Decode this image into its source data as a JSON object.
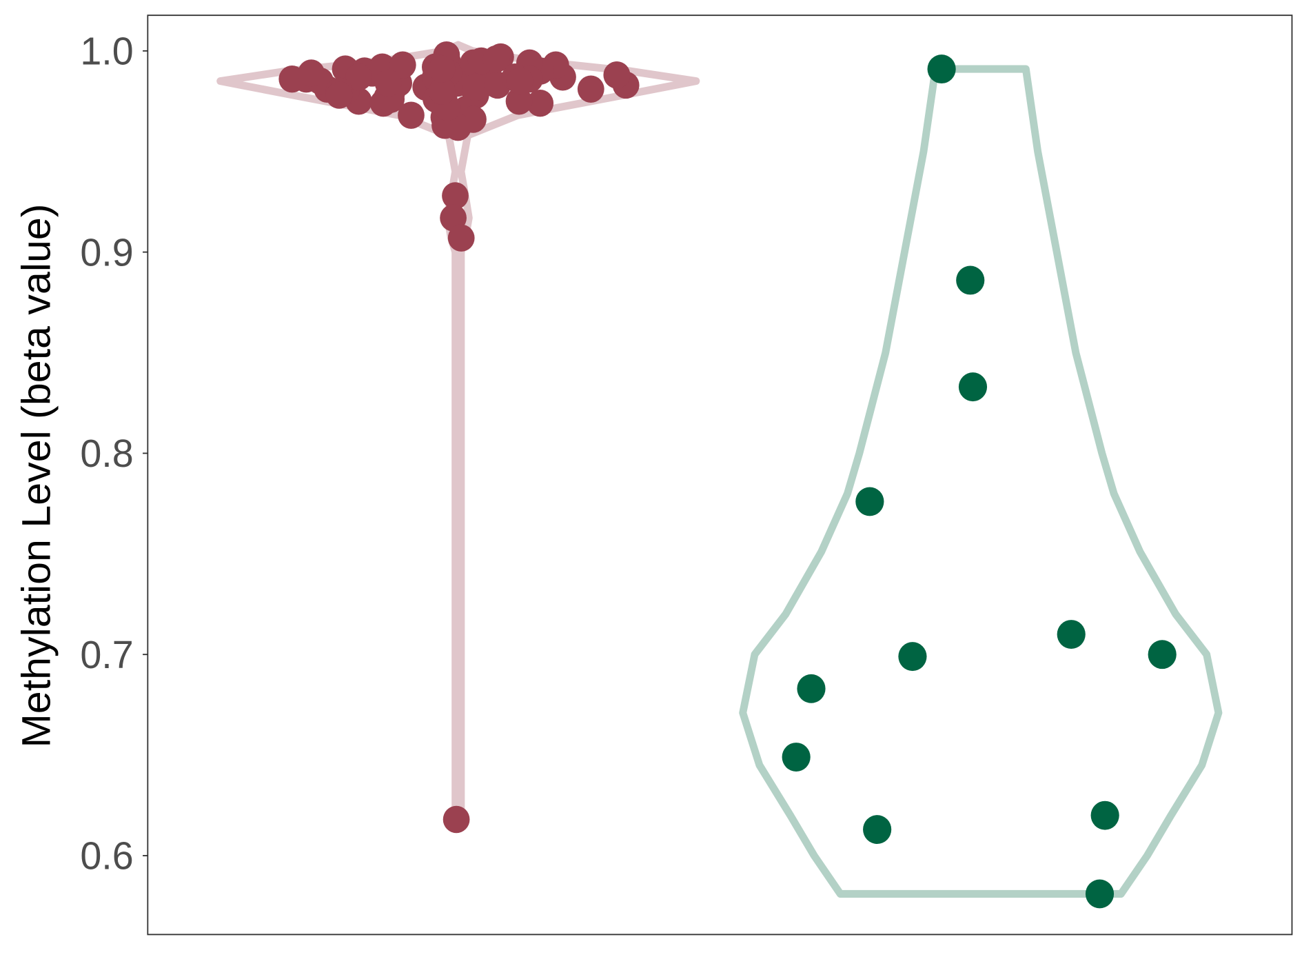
{
  "chart_data": {
    "type": "violin",
    "title": "",
    "xlabel": "",
    "ylabel": "Methylation Level (beta value)",
    "ylim": [
      0.5608,
      1.0177
    ],
    "yticks": [
      0.6,
      0.7,
      0.8,
      0.9,
      1.0
    ],
    "ytick_labels": [
      "0.6",
      "0.7",
      "0.8",
      "0.9",
      "1.0"
    ],
    "grid": false,
    "legend": "none",
    "groups": [
      {
        "fill_color": "#9b4150",
        "violin_color": "#e0c6cb",
        "density": [
          [
            0.618,
            0.012
          ],
          [
            0.9,
            0.012
          ],
          [
            0.907,
            0.03
          ],
          [
            0.917,
            0.045
          ],
          [
            0.928,
            0.03
          ],
          [
            0.94,
            0.012
          ],
          [
            0.958,
            0.04
          ],
          [
            0.968,
            0.25
          ],
          [
            0.977,
            0.65
          ],
          [
            0.985,
            1.0
          ],
          [
            0.99,
            0.72
          ],
          [
            0.995,
            0.32
          ],
          [
            1.0,
            0.06
          ],
          [
            1.003,
            0.0
          ]
        ],
        "values": [
          0.988,
          0.983,
          0.986,
          0.99,
          0.976,
          0.985,
          0.991,
          0.974,
          0.994,
          0.982,
          0.979,
          0.987,
          0.993,
          0.975,
          0.984,
          0.989,
          0.995,
          0.98,
          0.978,
          0.986,
          0.992,
          0.968,
          0.983,
          0.997,
          0.981,
          0.976,
          0.988,
          0.99,
          0.995,
          0.971,
          0.966,
          0.963,
          0.985,
          0.993,
          0.979,
          0.987,
          0.982,
          0.998,
          0.974,
          0.99,
          0.984,
          0.967,
          0.986,
          0.994,
          0.977,
          0.981,
          0.989,
          0.976,
          0.983,
          0.992,
          0.975,
          0.987,
          0.98,
          0.993,
          0.984,
          0.978,
          0.989,
          0.976,
          0.986,
          0.985,
          0.988,
          0.984,
          0.987,
          0.962,
          0.972,
          0.996,
          0.98,
          0.991,
          0.928,
          0.917,
          0.907,
          0.618
        ]
      },
      {
        "fill_color": "#006442",
        "violin_color": "#b3d1c6",
        "density": [
          [
            0.581,
            0.59
          ],
          [
            0.6,
            0.7
          ],
          [
            0.62,
            0.8
          ],
          [
            0.645,
            0.93
          ],
          [
            0.671,
            1.0
          ],
          [
            0.7,
            0.95
          ],
          [
            0.72,
            0.82
          ],
          [
            0.751,
            0.67
          ],
          [
            0.78,
            0.56
          ],
          [
            0.8,
            0.51
          ],
          [
            0.85,
            0.4
          ],
          [
            0.9,
            0.32
          ],
          [
            0.95,
            0.24
          ],
          [
            0.991,
            0.19
          ]
        ],
        "values": [
          0.991,
          0.886,
          0.833,
          0.776,
          0.71,
          0.699,
          0.7,
          0.683,
          0.649,
          0.613,
          0.62,
          0.581
        ]
      }
    ]
  }
}
